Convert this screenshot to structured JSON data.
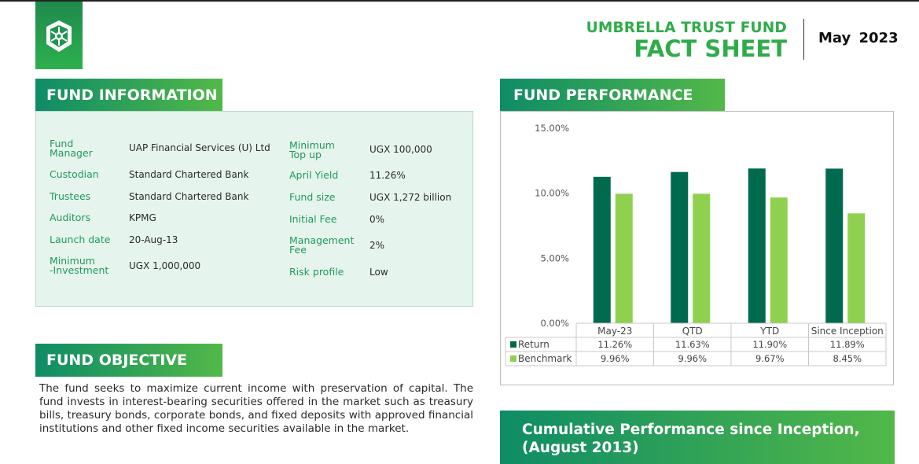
{
  "header": {
    "brand_line1": "UMBRELLA TRUST FUND",
    "brand_line2": "FACT SHEET",
    "date": "May 2023",
    "logo_icon": "old-mutual-shield-icon"
  },
  "fund_information": {
    "title": "FUND INFORMATION",
    "left": [
      {
        "label": "Fund\nManager",
        "value": "UAP Financial Services (U) Ltd"
      },
      {
        "label": "Custodian",
        "value": "Standard Chartered Bank"
      },
      {
        "label": "Trustees",
        "value": "Standard Chartered Bank"
      },
      {
        "label": "Auditors",
        "value": "KPMG"
      },
      {
        "label": "Launch date",
        "value": "20-Aug-13"
      },
      {
        "label": "Minimum\n-Investment",
        "value": "UGX 1,000,000"
      }
    ],
    "right": [
      {
        "label": "Minimum\nTop up",
        "value": "UGX 100,000"
      },
      {
        "label": "April Yield",
        "value": "11.26%"
      },
      {
        "label": "Fund size",
        "value": "UGX 1,272 billion"
      },
      {
        "label": "Initial Fee",
        "value": "0%"
      },
      {
        "label": "Management\nFee",
        "value": "2%"
      },
      {
        "label": "Risk profile",
        "value": "Low"
      }
    ]
  },
  "fund_objective": {
    "title": "FUND OBJECTIVE",
    "text": "The fund seeks to maximize current income with preservation of capital. The fund invests in interest-bearing securities offered in the market such as treasury bills, treasury bonds, corporate bonds, and fixed deposits with approved financial institutions and other fixed income securities available in the market."
  },
  "fund_performance": {
    "title": "FUND PERFORMANCE"
  },
  "chart_data": {
    "type": "bar",
    "categories": [
      "May-23",
      "QTD",
      "YTD",
      "Since Inception"
    ],
    "series": [
      {
        "name": "Return",
        "values": [
          11.26,
          11.63,
          11.9,
          11.89
        ],
        "labels": [
          "11.26%",
          "11.63%",
          "11.90%",
          "11.89%"
        ],
        "color": "#006a4e"
      },
      {
        "name": "Benchmark",
        "values": [
          9.96,
          9.96,
          9.67,
          8.45
        ],
        "labels": [
          "9.96%",
          "9.96%",
          "9.67%",
          "8.45%"
        ],
        "color": "#8fd14f"
      }
    ],
    "yticks": [
      "0.00%",
      "5.00%",
      "10.00%",
      "15.00%"
    ],
    "ytick_values": [
      0,
      5,
      10,
      15
    ],
    "ylim": [
      0,
      15
    ],
    "legend": "data-table",
    "grid": false
  },
  "cumulative": {
    "title_line1": "Cumulative Performance since Inception,",
    "title_line2": "(August 2013)"
  },
  "colors": {
    "brand_green": "#2eac4a",
    "label_green": "#1f9a5a",
    "panel_bg": "#e6f4ee"
  }
}
